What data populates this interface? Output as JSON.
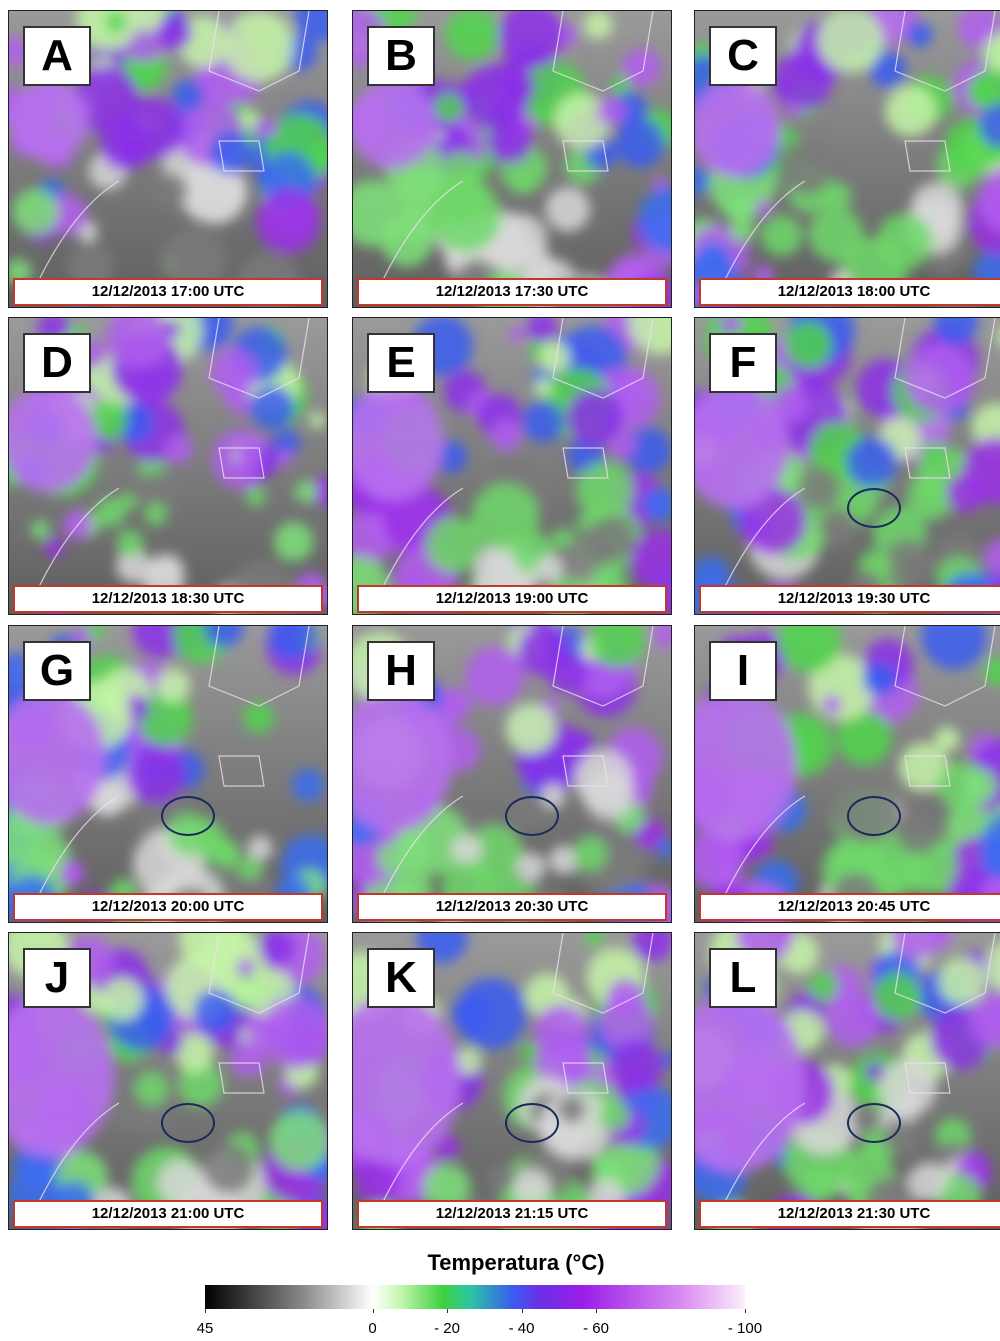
{
  "panels": [
    {
      "letter": "A",
      "timestamp": "12/12/2013 17:00 UTC"
    },
    {
      "letter": "B",
      "timestamp": "12/12/2013 17:30 UTC"
    },
    {
      "letter": "C",
      "timestamp": "12/12/2013 18:00 UTC"
    },
    {
      "letter": "D",
      "timestamp": "12/12/2013 18:30 UTC"
    },
    {
      "letter": "E",
      "timestamp": "12/12/2013 19:00 UTC"
    },
    {
      "letter": "F",
      "timestamp": "12/12/2013 19:30 UTC"
    },
    {
      "letter": "G",
      "timestamp": "12/12/2013 20:00 UTC"
    },
    {
      "letter": "H",
      "timestamp": "12/12/2013 20:30 UTC"
    },
    {
      "letter": "I",
      "timestamp": "12/12/2013 20:45 UTC"
    },
    {
      "letter": "J",
      "timestamp": "12/12/2013 21:00 UTC"
    },
    {
      "letter": "K",
      "timestamp": "12/12/2013 21:15 UTC"
    },
    {
      "letter": "L",
      "timestamp": "12/12/2013 21:30 UTC"
    }
  ],
  "colorbar": {
    "title": "Temperatura (°C)",
    "lim": [
      45,
      -100
    ],
    "ticks": [
      45,
      0,
      {
        "value": -20,
        "label": "- 20"
      },
      {
        "value": -40,
        "label": "- 40"
      },
      {
        "value": -60,
        "label": "- 60"
      },
      {
        "value": -100,
        "label": "- 100"
      }
    ]
  }
}
